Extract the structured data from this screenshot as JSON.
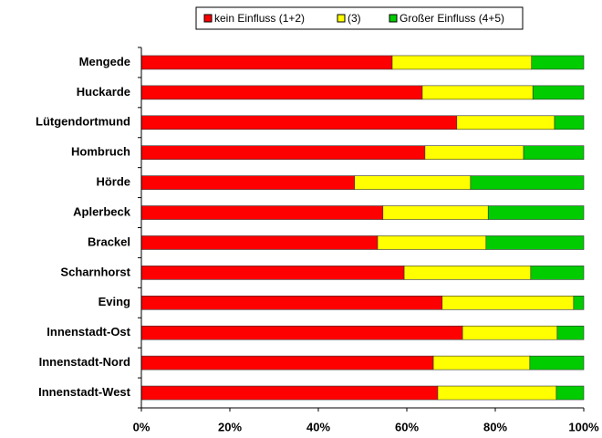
{
  "chart_data": {
    "type": "bar",
    "orientation": "horizontal",
    "stacked": true,
    "categories": [
      "Mengede",
      "Huckarde",
      "Lütgendortmund",
      "Hombruch",
      "Hörde",
      "Aplerbeck",
      "Brackel",
      "Scharnhorst",
      "Eving",
      "Innenstadt-Ost",
      "Innenstadt-Nord",
      "Innenstadt-West"
    ],
    "series": [
      {
        "name": "kein Einfluss (1+2)",
        "color": "#ff0000",
        "values": [
          56.7,
          63.5,
          71.3,
          64.1,
          48.2,
          54.6,
          53.4,
          59.4,
          68.0,
          72.6,
          66.0,
          67.0
        ]
      },
      {
        "name": "(3)",
        "color": "#ffff00",
        "values": [
          31.5,
          25.0,
          22.1,
          22.3,
          26.2,
          23.8,
          24.5,
          28.6,
          29.7,
          21.4,
          21.8,
          26.8
        ]
      },
      {
        "name": "Großer Einfluss (4+5)",
        "color": "#00cc00",
        "values": [
          11.8,
          11.5,
          6.6,
          13.6,
          25.6,
          21.6,
          22.1,
          12.0,
          2.3,
          6.0,
          12.2,
          6.2
        ]
      }
    ],
    "xlim": [
      0,
      100
    ],
    "xticks": [
      {
        "value": 0,
        "label": "0%"
      },
      {
        "value": 20,
        "label": "20%"
      },
      {
        "value": 40,
        "label": "40%"
      },
      {
        "value": 60,
        "label": "60%"
      },
      {
        "value": 80,
        "label": "80%"
      },
      {
        "value": 100,
        "label": "100%"
      }
    ],
    "legend": "top"
  }
}
